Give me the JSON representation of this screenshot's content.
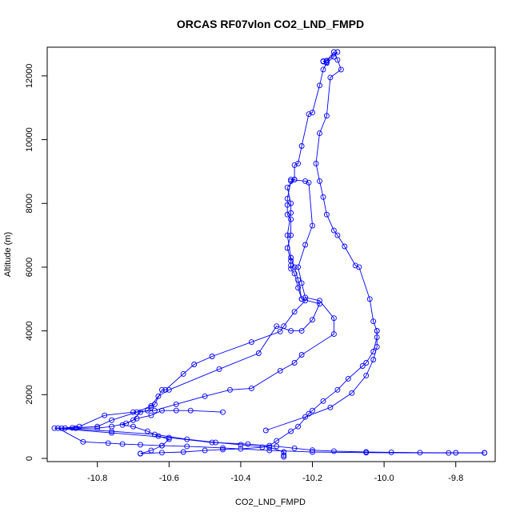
{
  "chart_data": {
    "type": "line",
    "title": "ORCAS RF07vlon CO2_LND_FMPD",
    "xlabel": "CO2_LND_FMPD",
    "ylabel": "Altitude (m)",
    "xlim": [
      -10.94,
      -9.69
    ],
    "ylim": [
      -100,
      12900
    ],
    "xticks": [
      -10.8,
      -10.6,
      -10.4,
      -10.2,
      -10.0,
      -9.8
    ],
    "xtick_labels": [
      "-10.8",
      "-10.6",
      "-10.4",
      "-10.2",
      "-10.0",
      "-9.8"
    ],
    "yticks": [
      0,
      2000,
      4000,
      6000,
      8000,
      10000,
      12000
    ],
    "ytick_labels": [
      "0",
      "2000",
      "4000",
      "6000",
      "8000",
      "10000",
      "12000"
    ],
    "grid": false,
    "color": "#0000ff",
    "series": [
      {
        "points": [
          [
            -10.17,
            12450
          ],
          [
            -10.16,
            12430
          ],
          [
            -10.17,
            12460
          ],
          [
            -10.16,
            12470
          ],
          [
            -10.13,
            12750
          ],
          [
            -10.14,
            12600
          ],
          [
            -10.16,
            12400
          ],
          [
            -10.17,
            12200
          ],
          [
            -10.18,
            11700
          ],
          [
            -10.2,
            10850
          ],
          [
            -10.21,
            10800
          ],
          [
            -10.23,
            9800
          ],
          [
            -10.24,
            9250
          ],
          [
            -10.25,
            9200
          ],
          [
            -10.25,
            8750
          ],
          [
            -10.26,
            8700
          ],
          [
            -10.27,
            8150
          ],
          [
            -10.27,
            7950
          ],
          [
            -10.27,
            7650
          ],
          [
            -10.26,
            7500
          ],
          [
            -10.26,
            7000
          ],
          [
            -10.27,
            6600
          ],
          [
            -10.26,
            6200
          ],
          [
            -10.26,
            6050
          ],
          [
            -10.26,
            5950
          ],
          [
            -10.25,
            5800
          ],
          [
            -10.24,
            5350
          ],
          [
            -10.23,
            5000
          ],
          [
            -10.22,
            4950
          ],
          [
            -10.25,
            4600
          ],
          [
            -10.28,
            4150
          ],
          [
            -10.29,
            3980
          ],
          [
            -10.37,
            3650
          ],
          [
            -10.48,
            3200
          ],
          [
            -10.53,
            2950
          ],
          [
            -10.56,
            2650
          ],
          [
            -10.61,
            2150
          ],
          [
            -10.62,
            2150
          ],
          [
            -10.64,
            1700
          ],
          [
            -10.65,
            1600
          ],
          [
            -10.66,
            1500
          ],
          [
            -10.68,
            1450
          ],
          [
            -10.7,
            1200
          ],
          [
            -10.72,
            1100
          ],
          [
            -10.76,
            1000
          ],
          [
            -10.8,
            950
          ],
          [
            -10.86,
            950
          ],
          [
            -10.89,
            950
          ],
          [
            -10.91,
            950
          ],
          [
            -10.84,
            520
          ],
          [
            -10.77,
            480
          ],
          [
            -10.73,
            450
          ],
          [
            -10.68,
            430
          ],
          [
            -10.62,
            400
          ],
          [
            -10.55,
            380
          ],
          [
            -10.45,
            330
          ],
          [
            -10.32,
            250
          ],
          [
            -10.2,
            200
          ],
          [
            -10.05,
            180
          ],
          [
            -9.82,
            170
          ],
          [
            -9.72,
            170
          ]
        ]
      },
      {
        "points": [
          [
            -10.16,
            12480
          ],
          [
            -10.14,
            12750
          ],
          [
            -10.13,
            12500
          ],
          [
            -10.12,
            12200
          ],
          [
            -10.15,
            11950
          ],
          [
            -10.16,
            10750
          ],
          [
            -10.18,
            10200
          ],
          [
            -10.19,
            9250
          ],
          [
            -10.18,
            8700
          ],
          [
            -10.17,
            8200
          ],
          [
            -10.16,
            7650
          ],
          [
            -10.14,
            7150
          ],
          [
            -10.13,
            7000
          ],
          [
            -10.11,
            6650
          ],
          [
            -10.08,
            6050
          ],
          [
            -10.07,
            6000
          ],
          [
            -10.04,
            5000
          ],
          [
            -10.03,
            4300
          ],
          [
            -10.02,
            4000
          ],
          [
            -10.02,
            3800
          ],
          [
            -10.03,
            3350
          ],
          [
            -10.05,
            3000
          ],
          [
            -10.06,
            2900
          ],
          [
            -10.1,
            2500
          ],
          [
            -10.13,
            2150
          ],
          [
            -10.17,
            1800
          ],
          [
            -10.2,
            1500
          ],
          [
            -10.21,
            1400
          ],
          [
            -10.24,
            1000
          ],
          [
            -10.26,
            850
          ],
          [
            -10.3,
            550
          ],
          [
            -10.32,
            400
          ],
          [
            -10.34,
            350
          ],
          [
            -10.4,
            300
          ],
          [
            -10.45,
            280
          ],
          [
            -10.5,
            250
          ],
          [
            -10.56,
            200
          ],
          [
            -10.62,
            180
          ],
          [
            -10.68,
            150
          ]
        ]
      },
      {
        "points": [
          [
            -10.25,
            8750
          ],
          [
            -10.27,
            8500
          ],
          [
            -10.26,
            8000
          ],
          [
            -10.26,
            7700
          ],
          [
            -10.27,
            7000
          ],
          [
            -10.26,
            6300
          ],
          [
            -10.25,
            6000
          ],
          [
            -10.24,
            5600
          ],
          [
            -10.23,
            5000
          ],
          [
            -10.18,
            4850
          ],
          [
            -10.2,
            4350
          ],
          [
            -10.23,
            4000
          ],
          [
            -10.26,
            4000
          ],
          [
            -10.3,
            4150
          ],
          [
            -10.35,
            3300
          ],
          [
            -10.46,
            2800
          ],
          [
            -10.6,
            2150
          ],
          [
            -10.63,
            1950
          ],
          [
            -10.65,
            1650
          ],
          [
            -10.69,
            1450
          ],
          [
            -10.76,
            1200
          ],
          [
            -10.8,
            1000
          ],
          [
            -10.87,
            960
          ],
          [
            -10.92,
            950
          ],
          [
            -10.76,
            800
          ],
          [
            -10.6,
            650
          ],
          [
            -10.48,
            500
          ],
          [
            -10.38,
            450
          ],
          [
            -10.3,
            380
          ],
          [
            -10.25,
            320
          ],
          [
            -10.2,
            260
          ],
          [
            -10.14,
            230
          ],
          [
            -10.05,
            200
          ],
          [
            -9.98,
            190
          ],
          [
            -9.9,
            180
          ],
          [
            -9.8,
            175
          ],
          [
            -9.72,
            175
          ]
        ]
      },
      {
        "points": [
          [
            -10.26,
            8750
          ],
          [
            -10.22,
            8700
          ],
          [
            -10.21,
            8650
          ],
          [
            -10.2,
            7300
          ],
          [
            -10.22,
            6700
          ],
          [
            -10.24,
            6000
          ],
          [
            -10.23,
            5500
          ],
          [
            -10.22,
            5050
          ],
          [
            -10.18,
            4950
          ],
          [
            -10.14,
            4400
          ],
          [
            -10.14,
            3900
          ],
          [
            -10.23,
            3250
          ],
          [
            -10.25,
            3000
          ],
          [
            -10.29,
            2750
          ],
          [
            -10.37,
            2200
          ],
          [
            -10.43,
            2150
          ],
          [
            -10.5,
            1950
          ],
          [
            -10.58,
            1700
          ],
          [
            -10.64,
            1500
          ],
          [
            -10.7,
            1450
          ],
          [
            -10.78,
            1350
          ],
          [
            -10.85,
            1000
          ],
          [
            -10.9,
            950
          ],
          [
            -10.76,
            850
          ],
          [
            -10.64,
            750
          ],
          [
            -10.55,
            600
          ],
          [
            -10.47,
            500
          ],
          [
            -10.4,
            430
          ],
          [
            -10.32,
            350
          ],
          [
            -10.28,
            200
          ],
          [
            -10.28,
            100
          ],
          [
            -10.28,
            50
          ]
        ]
      },
      {
        "points": [
          [
            -10.33,
            880
          ],
          [
            -10.22,
            1300
          ],
          [
            -10.15,
            1600
          ],
          [
            -10.09,
            2050
          ],
          [
            -10.05,
            2600
          ],
          [
            -10.03,
            3100
          ],
          [
            -10.02,
            3500
          ],
          [
            -10.02,
            4000
          ]
        ]
      },
      {
        "points": [
          [
            -10.68,
            150
          ],
          [
            -10.65,
            250
          ],
          [
            -10.62,
            400
          ],
          [
            -10.6,
            600
          ],
          [
            -10.63,
            700
          ],
          [
            -10.66,
            850
          ],
          [
            -10.7,
            1000
          ],
          [
            -10.73,
            1050
          ],
          [
            -10.69,
            1250
          ],
          [
            -10.65,
            1350
          ],
          [
            -10.62,
            1500
          ],
          [
            -10.58,
            1500
          ],
          [
            -10.54,
            1500
          ],
          [
            -10.45,
            1450
          ]
        ]
      }
    ]
  }
}
